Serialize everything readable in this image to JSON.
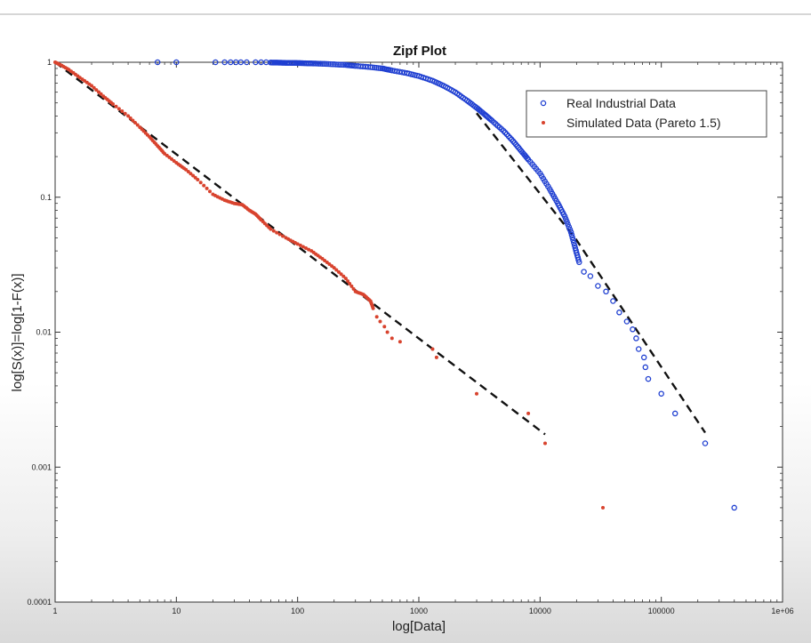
{
  "chart_data": {
    "type": "scatter",
    "title": "Zipf Plot",
    "xlabel": "log[Data]",
    "ylabel": "log[S(x)]=log[1-F(x)]",
    "xscale": "log",
    "yscale": "log",
    "xlim": [
      1,
      1000000
    ],
    "ylim": [
      0.0001,
      1
    ],
    "x_ticks": [
      {
        "value": 1,
        "label": "1"
      },
      {
        "value": 10,
        "label": "10"
      },
      {
        "value": 100,
        "label": "100"
      },
      {
        "value": 1000,
        "label": "1000"
      },
      {
        "value": 10000,
        "label": "10000"
      },
      {
        "value": 100000,
        "label": "100000"
      },
      {
        "value": 1000000,
        "label": "1e+06"
      }
    ],
    "y_ticks": [
      {
        "value": 1,
        "label": "1"
      },
      {
        "value": 0.1,
        "label": "0.1"
      },
      {
        "value": 0.01,
        "label": "0.01"
      },
      {
        "value": 0.001,
        "label": "0.001"
      },
      {
        "value": 0.0001,
        "label": "0.0001"
      }
    ],
    "grid": false,
    "legend_position": "top-right",
    "series": [
      {
        "name": "Real Industrial Data",
        "marker": "circle-open",
        "color": "#1f3fd1",
        "points": [
          [
            7,
            1
          ],
          [
            10,
            1
          ],
          [
            21,
            1
          ],
          [
            25,
            1
          ],
          [
            28,
            1
          ],
          [
            31,
            1
          ],
          [
            34,
            1
          ],
          [
            38,
            1
          ],
          [
            45,
            1
          ],
          [
            50,
            1
          ],
          [
            55,
            1
          ],
          [
            60,
            0.995
          ],
          [
            70,
            0.993
          ],
          [
            80,
            0.99
          ],
          [
            95,
            0.988
          ],
          [
            110,
            0.985
          ],
          [
            130,
            0.98
          ],
          [
            160,
            0.975
          ],
          [
            200,
            0.965
          ],
          [
            250,
            0.955
          ],
          [
            300,
            0.94
          ],
          [
            400,
            0.92
          ],
          [
            500,
            0.9
          ],
          [
            600,
            0.87
          ],
          [
            800,
            0.83
          ],
          [
            1000,
            0.79
          ],
          [
            1300,
            0.73
          ],
          [
            1600,
            0.67
          ],
          [
            2000,
            0.6
          ],
          [
            2500,
            0.52
          ],
          [
            3000,
            0.46
          ],
          [
            3500,
            0.41
          ],
          [
            4000,
            0.37
          ],
          [
            5000,
            0.31
          ],
          [
            6000,
            0.26
          ],
          [
            7000,
            0.22
          ],
          [
            8000,
            0.19
          ],
          [
            10000,
            0.15
          ],
          [
            12000,
            0.115
          ],
          [
            14000,
            0.09
          ],
          [
            16000,
            0.072
          ],
          [
            18000,
            0.055
          ],
          [
            19500,
            0.042
          ],
          [
            21000,
            0.033
          ],
          [
            23000,
            0.028
          ],
          [
            26000,
            0.026
          ],
          [
            30000,
            0.022
          ],
          [
            35000,
            0.02
          ],
          [
            40000,
            0.017
          ],
          [
            45000,
            0.014
          ],
          [
            52000,
            0.012
          ],
          [
            58000,
            0.0105
          ],
          [
            62000,
            0.009
          ],
          [
            65000,
            0.0075
          ],
          [
            72000,
            0.0065
          ],
          [
            74000,
            0.0055
          ],
          [
            78000,
            0.0045
          ],
          [
            100000,
            0.0035
          ],
          [
            130000,
            0.0025
          ],
          [
            230000,
            0.0015
          ],
          [
            400000,
            0.0005
          ]
        ]
      },
      {
        "name": "Simulated Data (Pareto 1.5)",
        "marker": "dot",
        "color": "#d8432e",
        "points": [
          [
            1,
            1
          ],
          [
            1.1,
            0.96
          ],
          [
            1.3,
            0.88
          ],
          [
            1.6,
            0.77
          ],
          [
            2,
            0.67
          ],
          [
            2.5,
            0.56
          ],
          [
            3,
            0.49
          ],
          [
            4,
            0.4
          ],
          [
            5,
            0.33
          ],
          [
            6,
            0.28
          ],
          [
            7,
            0.24
          ],
          [
            8,
            0.21
          ],
          [
            10,
            0.18
          ],
          [
            12,
            0.16
          ],
          [
            15,
            0.135
          ],
          [
            20,
            0.105
          ],
          [
            25,
            0.095
          ],
          [
            30,
            0.09
          ],
          [
            35,
            0.088
          ],
          [
            40,
            0.08
          ],
          [
            45,
            0.075
          ],
          [
            50,
            0.068
          ],
          [
            60,
            0.058
          ],
          [
            80,
            0.05
          ],
          [
            100,
            0.045
          ],
          [
            130,
            0.04
          ],
          [
            160,
            0.035
          ],
          [
            200,
            0.03
          ],
          [
            250,
            0.025
          ],
          [
            300,
            0.02
          ],
          [
            350,
            0.019
          ],
          [
            400,
            0.017
          ],
          [
            420,
            0.015
          ],
          [
            450,
            0.013
          ],
          [
            480,
            0.012
          ],
          [
            520,
            0.011
          ],
          [
            550,
            0.01
          ],
          [
            600,
            0.009
          ],
          [
            700,
            0.0085
          ],
          [
            1300,
            0.0075
          ],
          [
            1400,
            0.0065
          ],
          [
            3000,
            0.0035
          ],
          [
            8000,
            0.0025
          ],
          [
            11000,
            0.0015
          ],
          [
            33000,
            0.0005
          ]
        ]
      }
    ],
    "reference_lines": [
      {
        "style": "dashed",
        "color": "#111111",
        "points": [
          [
            1,
            1
          ],
          [
            11000,
            0.00175
          ]
        ]
      },
      {
        "style": "dashed",
        "color": "#111111",
        "points": [
          [
            3000,
            0.42
          ],
          [
            20000,
            0.048
          ],
          [
            230000,
            0.0018
          ]
        ]
      }
    ]
  }
}
